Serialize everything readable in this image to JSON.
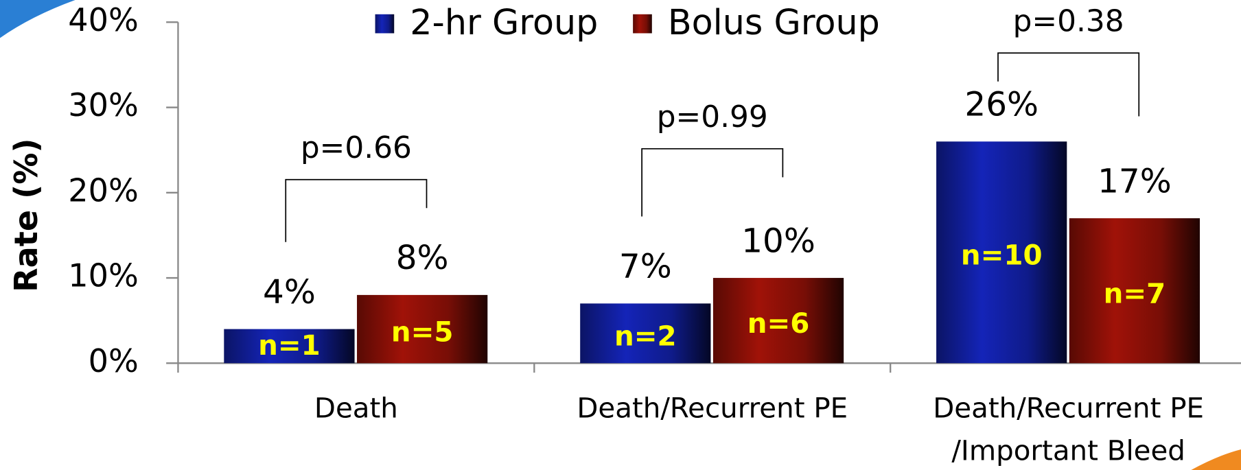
{
  "chart_data": {
    "type": "bar",
    "y_label": "Rate (%)",
    "categories": [
      "Death",
      "Death/Recurrent PE",
      "Death/Recurrent PE\n/Important Bleed"
    ],
    "series": [
      {
        "name": "2-hr Group",
        "color": "#1424b8",
        "values": [
          4,
          7,
          26
        ],
        "value_labels": [
          "4%",
          "7%",
          "26%"
        ],
        "n_labels": [
          "n=1",
          "n=2",
          "n=10"
        ]
      },
      {
        "name": "Bolus Group",
        "color": "#a01208",
        "values": [
          8,
          10,
          17
        ],
        "value_labels": [
          "8%",
          "10%",
          "17%"
        ],
        "n_labels": [
          "n=5",
          "n=6",
          "n=7"
        ]
      }
    ],
    "annotations": [
      "p=0.66",
      "p=0.99",
      "p=0.38"
    ],
    "ylim": [
      0,
      40
    ],
    "yticks": [
      {
        "value": 0,
        "label": "0%"
      },
      {
        "value": 10,
        "label": "10%"
      },
      {
        "value": 20,
        "label": "20%"
      },
      {
        "value": 30,
        "label": "30%"
      },
      {
        "value": 40,
        "label": "40%"
      }
    ],
    "legend": "top"
  }
}
